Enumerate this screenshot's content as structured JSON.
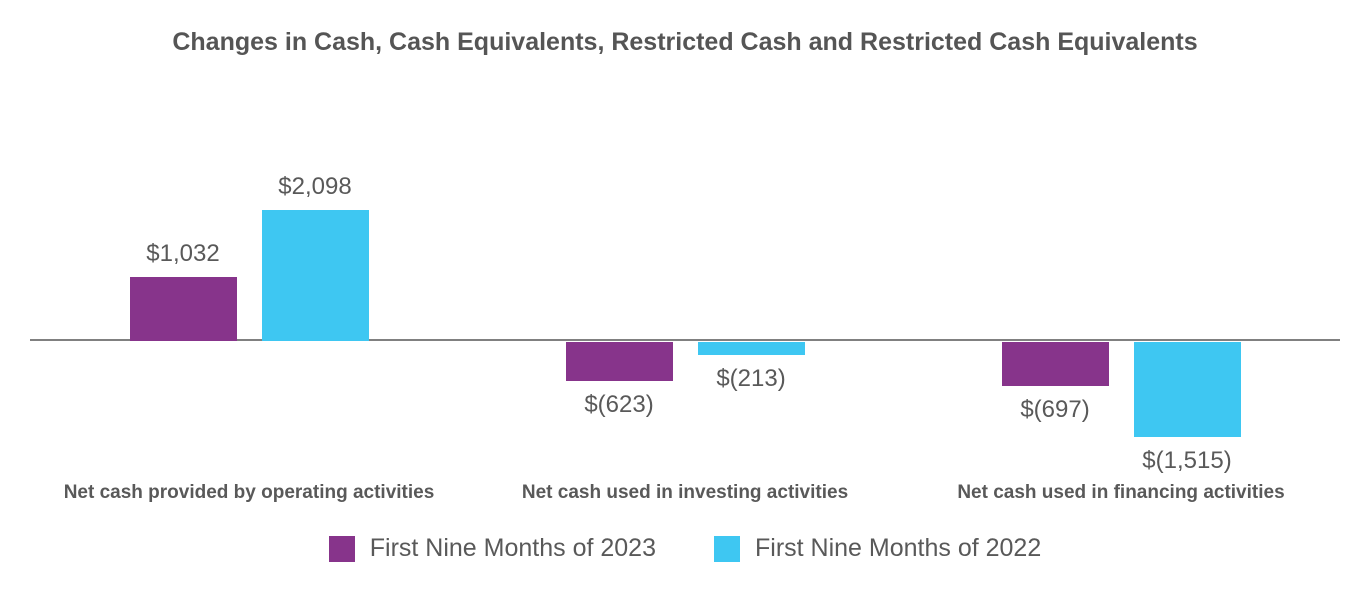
{
  "chart_data": {
    "type": "bar",
    "title": "Changes in Cash, Cash Equivalents, Restricted Cash and Restricted Cash Equivalents",
    "categories": [
      "Net cash provided by operating activities",
      "Net cash used in investing activities",
      "Net cash used in financing activities"
    ],
    "series": [
      {
        "name": "First Nine Months of 2023",
        "color": "#87348B",
        "values": [
          1032,
          -623,
          -697
        ],
        "labels": [
          "$1,032",
          "$(623)",
          "$(697)"
        ]
      },
      {
        "name": "First Nine Months of 2022",
        "color": "#3EC7F2",
        "values": [
          2098,
          -213,
          -1515
        ],
        "labels": [
          "$2,098",
          "$(213)",
          "$(1,515)"
        ]
      }
    ],
    "ylim": [
      -1600,
      2200
    ],
    "grid": false,
    "legend_position": "bottom",
    "axis_color": "#808080",
    "text_color": "#595959"
  }
}
